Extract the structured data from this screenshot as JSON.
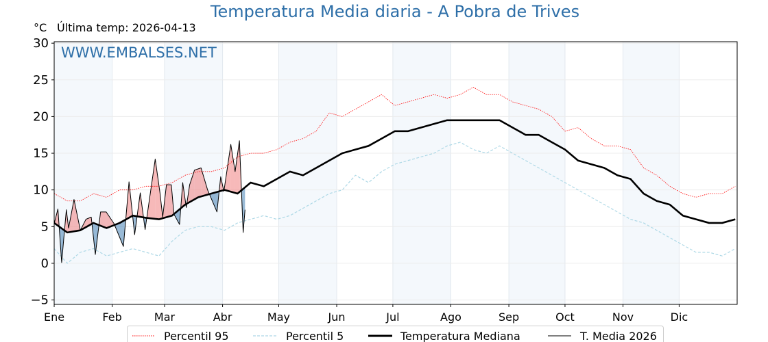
{
  "chart_data": {
    "type": "line",
    "title": "Temperatura Media diaria - A Pobra de Trives",
    "ylabel": "°C",
    "subtitle": "Última temp: 2026-04-13",
    "watermark": "WWW.EMBALSES.NET",
    "ylim": [
      -5.6,
      30.2
    ],
    "xlim": [
      0,
      365
    ],
    "yticks": [
      30,
      25,
      20,
      15,
      10,
      5,
      0,
      -5
    ],
    "ytick_labels": [
      "30",
      "25",
      "20",
      "15",
      "10",
      "5",
      "0",
      "−5"
    ],
    "months": [
      {
        "label": "Ene",
        "day": 0
      },
      {
        "label": "Feb",
        "day": 31
      },
      {
        "label": "Mar",
        "day": 59
      },
      {
        "label": "Abr",
        "day": 90
      },
      {
        "label": "May",
        "day": 120
      },
      {
        "label": "Jun",
        "day": 151
      },
      {
        "label": "Jul",
        "day": 181
      },
      {
        "label": "Ago",
        "day": 212
      },
      {
        "label": "Sep",
        "day": 243
      },
      {
        "label": "Oct",
        "day": 273
      },
      {
        "label": "Nov",
        "day": 304
      },
      {
        "label": "Dic",
        "day": 334
      }
    ],
    "grid": true,
    "legend_position": "bottom-center",
    "step_days": 7,
    "series": [
      {
        "name": "Percentil 95",
        "color": "#ff0000",
        "style": "dotted",
        "values": [
          9.5,
          8.5,
          8.5,
          9.5,
          9,
          10,
          10,
          10.5,
          10.5,
          11,
          12,
          12.5,
          12.5,
          13,
          14.5,
          15,
          15,
          15.5,
          16.5,
          17,
          18,
          20.5,
          20,
          21,
          22,
          23,
          21.5,
          22,
          22.5,
          23,
          22.5,
          23,
          24,
          23,
          23,
          22,
          21.5,
          21,
          20,
          18,
          18.5,
          17,
          16,
          16,
          15.5,
          13,
          12,
          10.5,
          9.5,
          9,
          9.5,
          9.5,
          10.5
        ]
      },
      {
        "name": "Percentil 5",
        "color": "#add8e6",
        "style": "dashed",
        "values": [
          2,
          0,
          1.5,
          2,
          1,
          1.5,
          2,
          1.5,
          1,
          3,
          4.5,
          5,
          5,
          4.5,
          5.5,
          6,
          6.5,
          6,
          6.5,
          7.5,
          8.5,
          9.5,
          10,
          12,
          11,
          12.5,
          13.5,
          14,
          14.5,
          15,
          16,
          16.5,
          15.5,
          15,
          16,
          15,
          14,
          13,
          12,
          11,
          10,
          9,
          8,
          7,
          6,
          5.5,
          4.5,
          3.5,
          2.5,
          1.5,
          1.5,
          1,
          2
        ]
      },
      {
        "name": "Temperatura Mediana",
        "color": "#000000",
        "style": "thick",
        "values": [
          5.5,
          4.2,
          4.5,
          5.5,
          4.8,
          5.5,
          6.5,
          6.2,
          6,
          6.5,
          8,
          9,
          9.5,
          10,
          9.5,
          11,
          10.5,
          11.5,
          12.5,
          12,
          13,
          14,
          15,
          15.5,
          16,
          17,
          18,
          18,
          18.5,
          19,
          19.5,
          19.5,
          19.5,
          19.5,
          19.5,
          18.5,
          17.5,
          17.5,
          16.5,
          15.5,
          14,
          13.5,
          13,
          12,
          11.5,
          9.5,
          8.5,
          8,
          6.5,
          6,
          5.5,
          5.5,
          6
        ]
      }
    ],
    "current_year": {
      "name": "T. Media 2026",
      "color": "#000000",
      "above_color": "#f08080",
      "below_color": "#4682b4",
      "points": [
        [
          0,
          5.4
        ],
        [
          2,
          7.4
        ],
        [
          4,
          0.1
        ],
        [
          6.5,
          7.3
        ],
        [
          7.7,
          4.8
        ],
        [
          10.6,
          8.7
        ],
        [
          14,
          4.5
        ],
        [
          17,
          6
        ],
        [
          19.8,
          6.3
        ],
        [
          22,
          1.2
        ],
        [
          24.8,
          7
        ],
        [
          27.8,
          7
        ],
        [
          32,
          5.4
        ],
        [
          37,
          2.3
        ],
        [
          40,
          11.1
        ],
        [
          43,
          3.9
        ],
        [
          46,
          9.6
        ],
        [
          48.6,
          4.6
        ],
        [
          54,
          14.2
        ],
        [
          56.5,
          9.7
        ],
        [
          58,
          6.3
        ],
        [
          60,
          10.7
        ],
        [
          62.6,
          10.7
        ],
        [
          64,
          6.7
        ],
        [
          67,
          5.3
        ],
        [
          68.7,
          11
        ],
        [
          70.6,
          7.6
        ],
        [
          72.4,
          10.7
        ],
        [
          75,
          12.7
        ],
        [
          78.5,
          13
        ],
        [
          82,
          10
        ],
        [
          84,
          8.8
        ],
        [
          87,
          7
        ],
        [
          89,
          11.8
        ],
        [
          90.7,
          9.8
        ],
        [
          94.4,
          16.2
        ],
        [
          96.7,
          12.5
        ],
        [
          99,
          16.7
        ],
        [
          101,
          4.2
        ],
        [
          102,
          7.3
        ]
      ]
    }
  }
}
